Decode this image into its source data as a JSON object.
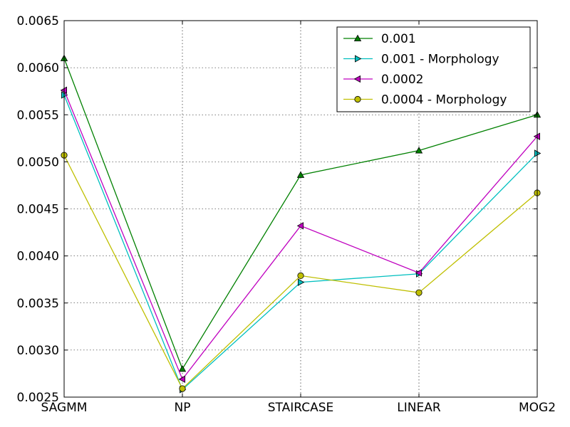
{
  "chart_data": {
    "type": "line",
    "title": "",
    "xlabel": "",
    "ylabel": "",
    "categories": [
      "SAGMM",
      "NP",
      "STAIRCASE",
      "LINEAR",
      "MOG2"
    ],
    "ylim": [
      0.0025,
      0.0065
    ],
    "yticks": [
      0.0025,
      0.003,
      0.0035,
      0.004,
      0.0045,
      0.005,
      0.0055,
      0.006,
      0.0065
    ],
    "ytick_labels": [
      "0.0025",
      "0.0030",
      "0.0035",
      "0.0040",
      "0.0045",
      "0.0050",
      "0.0055",
      "0.0060",
      "0.0065"
    ],
    "grid": true,
    "legend_position": "top-right",
    "series": [
      {
        "name": "0.001",
        "color": "#008000",
        "marker": "triangle-up",
        "values": [
          0.0061,
          0.0028,
          0.00486,
          0.00512,
          0.0055
        ]
      },
      {
        "name": "0.001 - Morphology",
        "color": "#00bfbf",
        "marker": "triangle-right",
        "values": [
          0.00571,
          0.00258,
          0.00372,
          0.00381,
          0.00509
        ]
      },
      {
        "name": "0.0002",
        "color": "#bf00bf",
        "marker": "triangle-left",
        "values": [
          0.00576,
          0.00269,
          0.00432,
          0.00382,
          0.00527
        ]
      },
      {
        "name": "0.0004 - Morphology",
        "color": "#bfbf00",
        "marker": "circle",
        "values": [
          0.00507,
          0.00259,
          0.00379,
          0.00361,
          0.00467
        ]
      }
    ]
  }
}
